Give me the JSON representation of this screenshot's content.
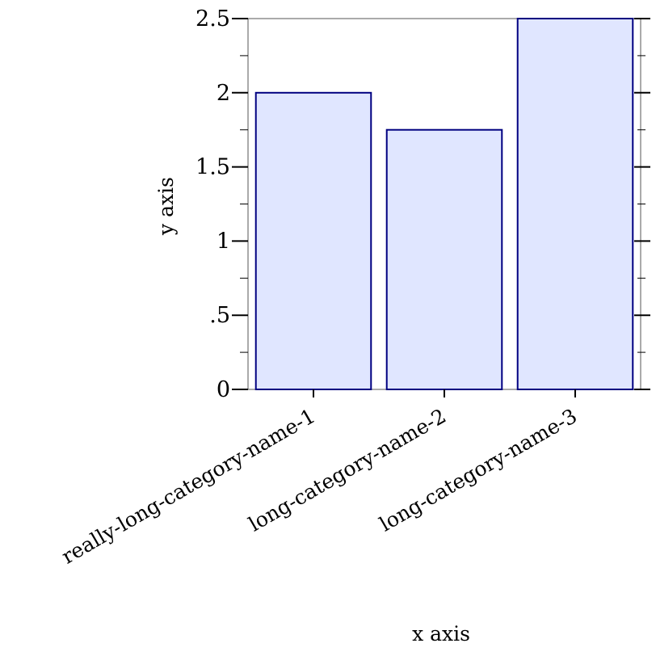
{
  "chart_data": {
    "type": "bar",
    "categories": [
      "really-long-category-name-1",
      "long-category-name-2",
      "long-category-name-3"
    ],
    "values": [
      2,
      1.75,
      2.5
    ],
    "xlabel": "x axis",
    "ylabel": "y axis",
    "ylim": [
      0,
      2.5
    ],
    "yticks": [
      0,
      0.5,
      1,
      1.5,
      2,
      2.5
    ],
    "ytick_labels": [
      "0",
      ".5",
      "1",
      "1.5",
      "2",
      "2.5"
    ],
    "grid": false,
    "bar_fill": "#e0e6ff",
    "bar_stroke": "#000080"
  }
}
